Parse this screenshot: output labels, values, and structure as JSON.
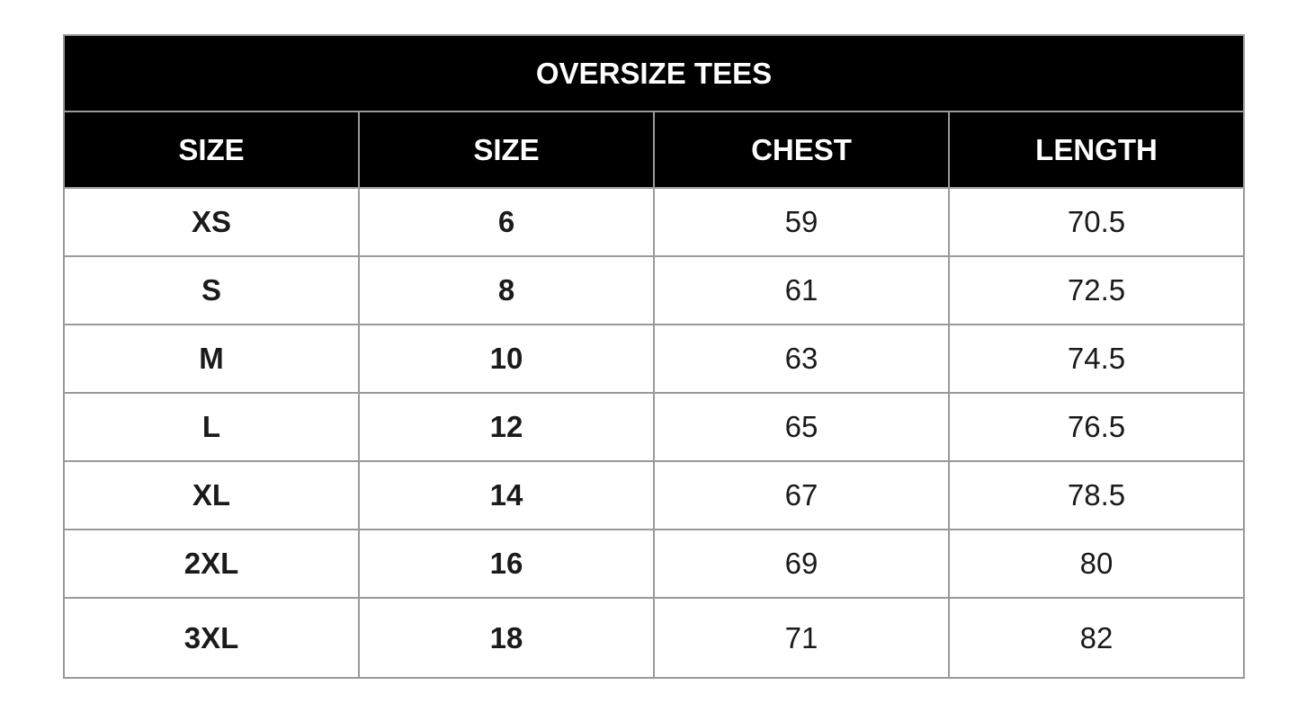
{
  "title": "OVERSIZE TEES",
  "headers": [
    "SIZE",
    "SIZE",
    "CHEST",
    "LENGTH"
  ],
  "rows": [
    [
      "XS",
      "6",
      "59",
      "70.5"
    ],
    [
      "S",
      "8",
      "61",
      "72.5"
    ],
    [
      "M",
      "10",
      "63",
      "74.5"
    ],
    [
      "L",
      "12",
      "65",
      "76.5"
    ],
    [
      "XL",
      "14",
      "67",
      "78.5"
    ],
    [
      "2XL",
      "16",
      "69",
      "80"
    ],
    [
      "3XL",
      "18",
      "71",
      "82"
    ]
  ]
}
